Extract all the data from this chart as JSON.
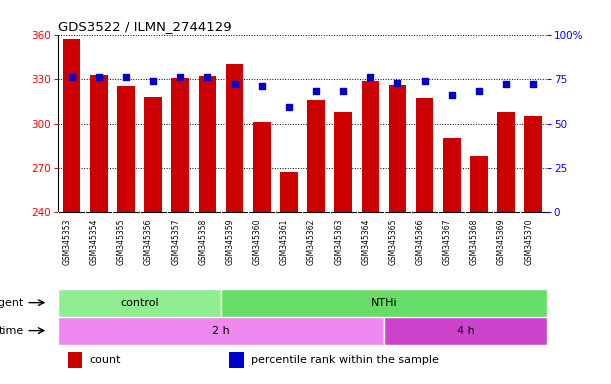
{
  "title": "GDS3522 / ILMN_2744129",
  "samples": [
    "GSM345353",
    "GSM345354",
    "GSM345355",
    "GSM345356",
    "GSM345357",
    "GSM345358",
    "GSM345359",
    "GSM345360",
    "GSM345361",
    "GSM345362",
    "GSM345363",
    "GSM345364",
    "GSM345365",
    "GSM345366",
    "GSM345367",
    "GSM345368",
    "GSM345369",
    "GSM345370"
  ],
  "counts": [
    357,
    333,
    325,
    318,
    331,
    332,
    340,
    301,
    267,
    316,
    308,
    329,
    326,
    317,
    290,
    278,
    308,
    305
  ],
  "percentiles": [
    76,
    76,
    76,
    74,
    76,
    76,
    72,
    71,
    59,
    68,
    68,
    76,
    73,
    74,
    66,
    68,
    72,
    72
  ],
  "ylim_left": [
    240,
    360
  ],
  "ylim_right": [
    0,
    100
  ],
  "yticks_left": [
    240,
    270,
    300,
    330,
    360
  ],
  "yticks_right": [
    0,
    25,
    50,
    75,
    100
  ],
  "ytick_labels_right": [
    "0",
    "25",
    "50",
    "75",
    "100%"
  ],
  "bar_color": "#cc0000",
  "dot_color": "#0000cc",
  "sample_bg_color": "#cccccc",
  "agent_colors": [
    "#90ee90",
    "#66dd66"
  ],
  "time_colors": [
    "#ee88ee",
    "#cc44cc"
  ],
  "agent_labels": [
    "control",
    "NTHi"
  ],
  "agent_starts": [
    0,
    6
  ],
  "agent_ends": [
    6,
    18
  ],
  "time_labels": [
    "2 h",
    "4 h"
  ],
  "time_starts": [
    0,
    12
  ],
  "time_ends": [
    12,
    18
  ],
  "legend_items": [
    {
      "label": "count",
      "color": "#cc0000"
    },
    {
      "label": "percentile rank within the sample",
      "color": "#0000cc"
    }
  ]
}
